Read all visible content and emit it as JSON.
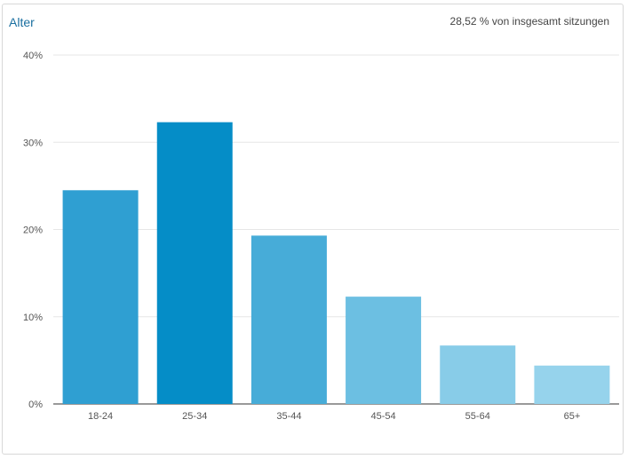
{
  "header": {
    "title": "Alter",
    "summary": "28,52 % von insgesamt sitzungen"
  },
  "chart_data": {
    "type": "bar",
    "categories": [
      "18-24",
      "25-34",
      "35-44",
      "45-54",
      "55-64",
      "65+"
    ],
    "values": [
      24.5,
      32.3,
      19.3,
      12.3,
      6.7,
      4.4
    ],
    "y_ticks": [
      "0%",
      "10%",
      "20%",
      "30%",
      "40%"
    ],
    "ylim": [
      0,
      40
    ],
    "grid": true,
    "legend": "none",
    "colors": [
      "#2f9fd2",
      "#058dc7",
      "#47acd8",
      "#6cbfe2",
      "#88cce8",
      "#96d3ec"
    ]
  }
}
